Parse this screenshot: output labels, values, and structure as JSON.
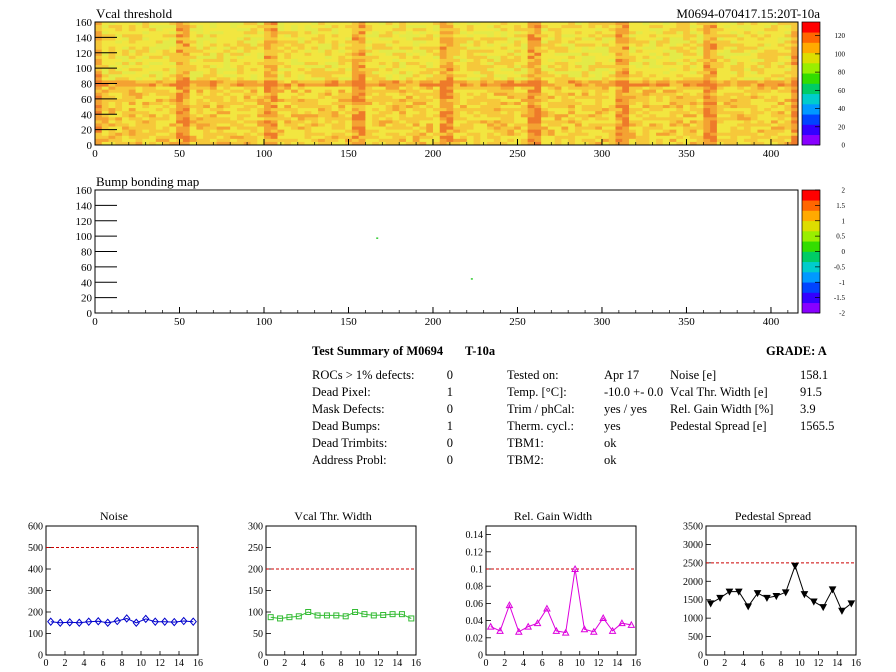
{
  "header": {
    "map1_title": "Vcal threshold",
    "module_id": "M0694-070417.15:20T-10a",
    "map2_title": "Bump bonding map"
  },
  "maps": {
    "x_ticks": [
      "0",
      "50",
      "100",
      "150",
      "200",
      "250",
      "300",
      "350",
      "400"
    ],
    "y_ticks": [
      "0",
      "20",
      "40",
      "60",
      "80",
      "100",
      "120",
      "140",
      "160"
    ],
    "xlim": [
      0,
      416
    ],
    "ylim": [
      0,
      160
    ],
    "colorbar1_ticks": [
      "0",
      "20",
      "40",
      "60",
      "80",
      "100",
      "120"
    ],
    "colorbar1_range": [
      0,
      135
    ],
    "colorbar2_ticks": [
      "-2",
      "-1.5",
      "-1",
      "-0.5",
      "0",
      "0.5",
      "1",
      "1.5",
      "2"
    ],
    "colorbar2_range": [
      -2,
      2
    ],
    "bump_hits": [
      {
        "x": 167,
        "y": 97
      },
      {
        "x": 223,
        "y": 44
      }
    ]
  },
  "summary": {
    "title": "Test Summary of M0694",
    "title_suffix": "T-10a",
    "grade": "GRADE:  A",
    "col1": [
      {
        "label": "ROCs > 1% defects:",
        "value": "0"
      },
      {
        "label": "Dead Pixel:",
        "value": "1"
      },
      {
        "label": "Mask Defects:",
        "value": "0"
      },
      {
        "label": "Dead Bumps:",
        "value": "1"
      },
      {
        "label": "Dead Trimbits:",
        "value": "0"
      },
      {
        "label": "Address Probl:",
        "value": "0"
      }
    ],
    "col2": [
      {
        "label": "Tested on:",
        "value": "Apr 17"
      },
      {
        "label": "Temp. [°C]:",
        "value": "-10.0 +- 0.0"
      },
      {
        "label": "Trim / phCal:",
        "value": "yes / yes"
      },
      {
        "label": "Therm. cycl.:",
        "value": "yes"
      },
      {
        "label": "TBM1:",
        "value": "ok"
      },
      {
        "label": "TBM2:",
        "value": "ok"
      }
    ],
    "col3": [
      {
        "label": "Noise [e]",
        "value": "158.1"
      },
      {
        "label": "Vcal Thr. Width [e]",
        "value": "91.5"
      },
      {
        "label": "Rel. Gain Width [%]",
        "value": "3.9"
      },
      {
        "label": "Pedestal Spread [e]",
        "value": "1565.5"
      }
    ]
  },
  "chart_data": [
    {
      "type": "line",
      "title": "Noise",
      "x": [
        0,
        1,
        2,
        3,
        4,
        5,
        6,
        7,
        8,
        9,
        10,
        11,
        12,
        13,
        14,
        15
      ],
      "values": [
        155,
        150,
        152,
        150,
        155,
        157,
        150,
        158,
        170,
        150,
        168,
        155,
        155,
        153,
        158,
        155
      ],
      "x_ticks": [
        "0",
        "2",
        "4",
        "6",
        "8",
        "10",
        "12",
        "14",
        "16"
      ],
      "y_ticks": [
        "0",
        "100",
        "200",
        "300",
        "400",
        "500",
        "600"
      ],
      "xlim": [
        0,
        16
      ],
      "ylim": [
        0,
        600
      ],
      "threshold": 500,
      "color": "#0000cc",
      "marker": "diamond"
    },
    {
      "type": "line",
      "title": "Vcal Thr. Width",
      "x": [
        0,
        1,
        2,
        3,
        4,
        5,
        6,
        7,
        8,
        9,
        10,
        11,
        12,
        13,
        14,
        15
      ],
      "values": [
        88,
        85,
        88,
        90,
        100,
        92,
        92,
        92,
        90,
        100,
        95,
        92,
        93,
        95,
        95,
        85
      ],
      "x_ticks": [
        "0",
        "2",
        "4",
        "6",
        "8",
        "10",
        "12",
        "14",
        "16"
      ],
      "y_ticks": [
        "0",
        "50",
        "100",
        "150",
        "200",
        "250",
        "300"
      ],
      "xlim": [
        0,
        16
      ],
      "ylim": [
        0,
        300
      ],
      "threshold": 200,
      "color": "#33bb33",
      "marker": "square"
    },
    {
      "type": "line",
      "title": "Rel. Gain Width",
      "x": [
        0,
        1,
        2,
        3,
        4,
        5,
        6,
        7,
        8,
        9,
        10,
        11,
        12,
        13,
        14,
        15
      ],
      "values": [
        0.033,
        0.028,
        0.058,
        0.027,
        0.033,
        0.037,
        0.054,
        0.028,
        0.026,
        0.1,
        0.03,
        0.027,
        0.043,
        0.028,
        0.037,
        0.035
      ],
      "x_ticks": [
        "0",
        "2",
        "4",
        "6",
        "8",
        "10",
        "12",
        "14",
        "16"
      ],
      "y_ticks": [
        "0",
        "0.02",
        "0.04",
        "0.06",
        "0.08",
        "0.1",
        "0.12",
        "0.14"
      ],
      "xlim": [
        0,
        16
      ],
      "ylim": [
        0,
        0.15
      ],
      "threshold": 0.1,
      "color": "#dd00dd",
      "marker": "triangle-open"
    },
    {
      "type": "line",
      "title": "Pedestal Spread",
      "x": [
        0,
        1,
        2,
        3,
        4,
        5,
        6,
        7,
        8,
        9,
        10,
        11,
        12,
        13,
        14,
        15
      ],
      "values": [
        1400,
        1550,
        1720,
        1720,
        1320,
        1680,
        1550,
        1600,
        1700,
        2420,
        1650,
        1450,
        1300,
        1780,
        1200,
        1400
      ],
      "x_ticks": [
        "0",
        "2",
        "4",
        "6",
        "8",
        "10",
        "12",
        "14",
        "16"
      ],
      "y_ticks": [
        "0",
        "500",
        "1000",
        "1500",
        "2000",
        "2500",
        "3000",
        "3500"
      ],
      "xlim": [
        0,
        16
      ],
      "ylim": [
        0,
        3500
      ],
      "threshold": 2500,
      "color": "#000000",
      "marker": "triangle"
    }
  ],
  "colors": {
    "threshold_line": "#cc0000"
  }
}
